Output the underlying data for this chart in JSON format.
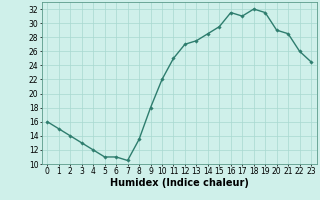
{
  "x": [
    0,
    1,
    2,
    3,
    4,
    5,
    6,
    7,
    8,
    9,
    10,
    11,
    12,
    13,
    14,
    15,
    16,
    17,
    18,
    19,
    20,
    21,
    22,
    23
  ],
  "y": [
    16,
    15,
    14,
    13,
    12,
    11,
    11,
    10.5,
    13.5,
    18,
    22,
    25,
    27,
    27.5,
    28.5,
    29.5,
    31.5,
    31,
    32,
    31.5,
    29,
    28.5,
    26,
    24.5
  ],
  "title": "",
  "xlabel": "Humidex (Indice chaleur)",
  "ylabel": "",
  "line_color": "#2e7d6e",
  "marker": "D",
  "marker_size": 1.8,
  "bg_color": "#cff0ea",
  "grid_color": "#a8d9d0",
  "xlim": [
    -0.5,
    23.5
  ],
  "ylim": [
    10,
    33
  ],
  "yticks": [
    10,
    12,
    14,
    16,
    18,
    20,
    22,
    24,
    26,
    28,
    30,
    32
  ],
  "xticks": [
    0,
    1,
    2,
    3,
    4,
    5,
    6,
    7,
    8,
    9,
    10,
    11,
    12,
    13,
    14,
    15,
    16,
    17,
    18,
    19,
    20,
    21,
    22,
    23
  ],
  "tick_label_fontsize": 5.5,
  "xlabel_fontsize": 7.0,
  "linewidth": 1.0
}
